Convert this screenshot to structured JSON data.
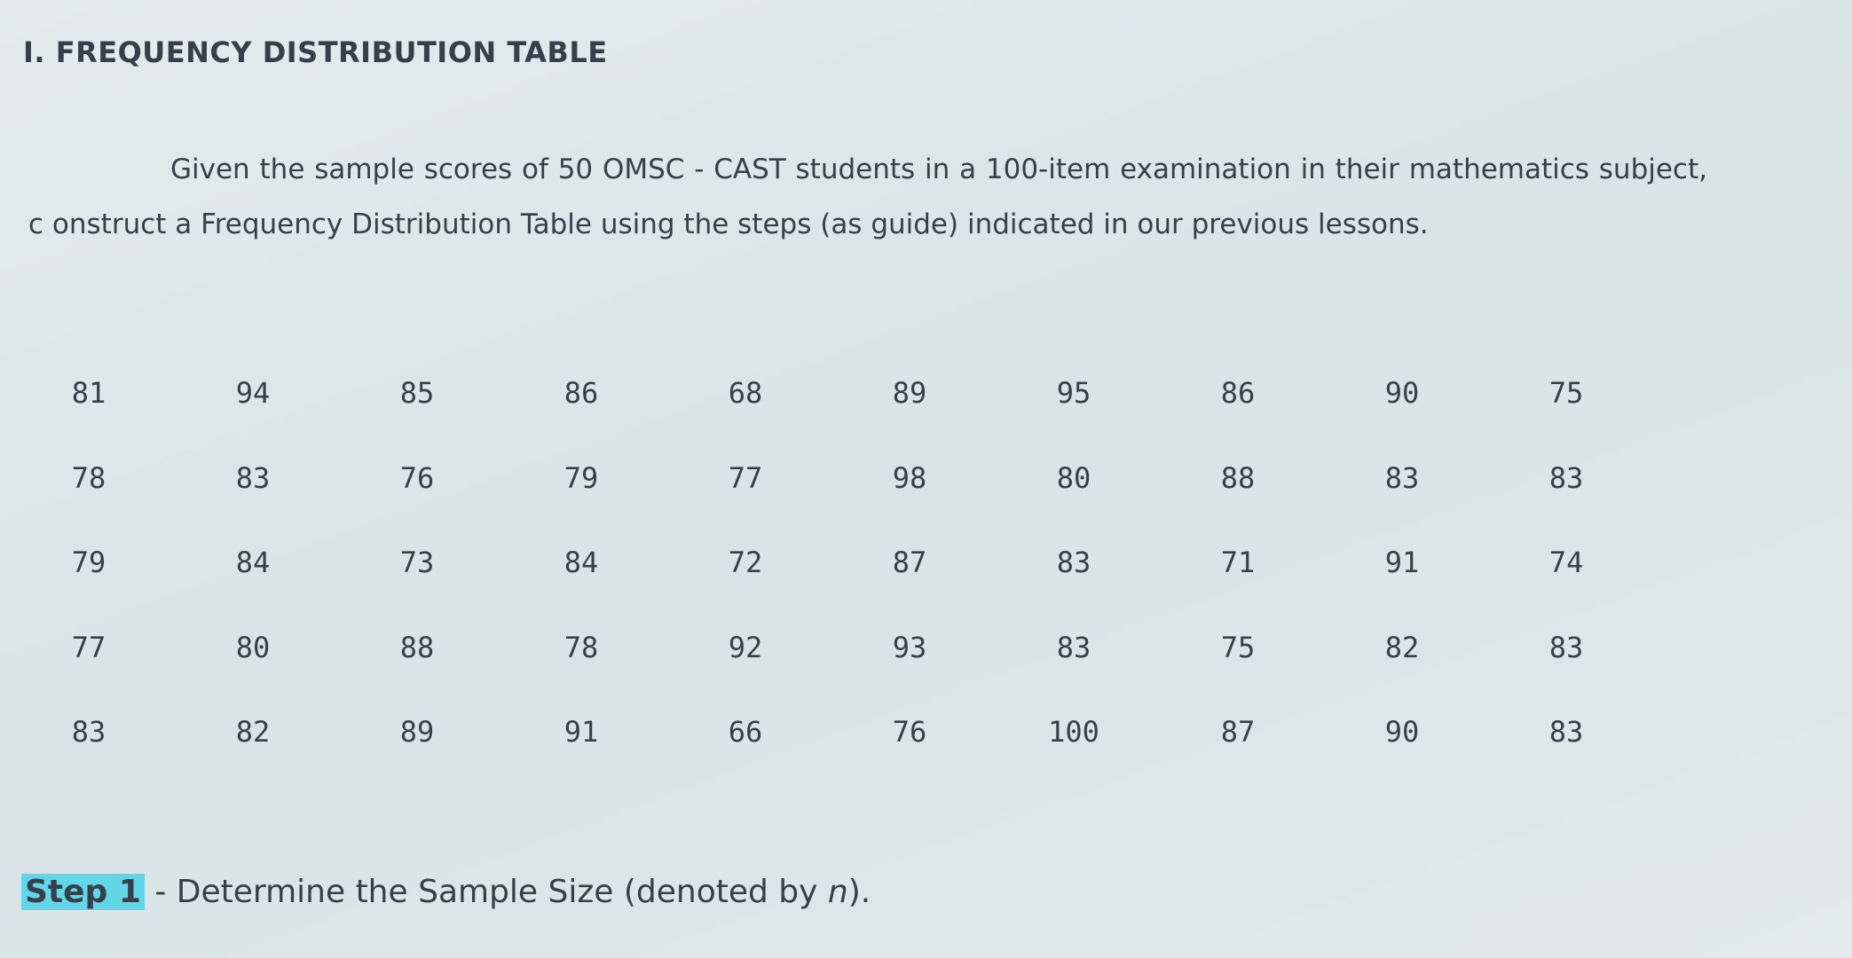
{
  "header": {
    "title": "I. FREQUENCY DISTRIBUTION TABLE"
  },
  "intro": "Given the sample scores of 50 OMSC - CAST students in a 100-item examination in their mathematics subject, c onstruct a Frequency Distribution Table using the steps (as guide) indicated in our previous lessons.",
  "table": {
    "rows": [
      [
        81,
        94,
        85,
        86,
        68,
        89,
        95,
        86,
        90,
        75
      ],
      [
        78,
        83,
        76,
        79,
        77,
        98,
        80,
        88,
        83,
        83
      ],
      [
        79,
        84,
        73,
        84,
        72,
        87,
        83,
        71,
        91,
        74
      ],
      [
        77,
        80,
        88,
        78,
        92,
        93,
        83,
        75,
        82,
        83
      ],
      [
        83,
        82,
        89,
        91,
        66,
        76,
        100,
        87,
        90,
        83
      ]
    ]
  },
  "step": {
    "label": "Step 1",
    "text": " - Determine the Sample Size (denoted by ",
    "variable": "n",
    "end": ")."
  }
}
